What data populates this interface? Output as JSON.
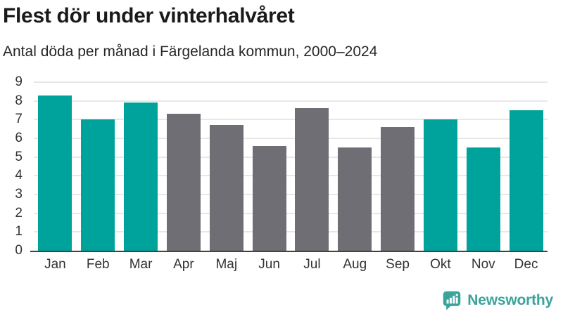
{
  "header": {
    "title": "Flest dör under vinterhalvåret",
    "subtitle": "Antal döda per månad i Färgelanda kommun, 2000–2024"
  },
  "chart_data": {
    "type": "bar",
    "title": "Flest dör under vinterhalvåret",
    "subtitle": "Antal döda per månad i Färgelanda kommun, 2000–2024",
    "categories": [
      "Jan",
      "Feb",
      "Mar",
      "Apr",
      "Maj",
      "Jun",
      "Jul",
      "Aug",
      "Sep",
      "Okt",
      "Nov",
      "Dec"
    ],
    "values": [
      8.3,
      7.0,
      7.9,
      7.3,
      6.7,
      5.6,
      7.6,
      5.5,
      6.6,
      7.0,
      5.5,
      7.5
    ],
    "bar_roles": [
      "highlight",
      "highlight",
      "highlight",
      "muted",
      "muted",
      "muted",
      "muted",
      "muted",
      "muted",
      "highlight",
      "highlight",
      "highlight"
    ],
    "highlight_meaning": "winter half-year months",
    "xlabel": "",
    "ylabel": "",
    "ylim": [
      0,
      9
    ],
    "yticks": [
      0,
      1,
      2,
      3,
      4,
      5,
      6,
      7,
      8,
      9
    ],
    "grid": "horizontal",
    "legend": "none",
    "colors": {
      "highlight": "#00a39b",
      "muted": "#6e6e74",
      "gridline": "#e7e7e7",
      "baseline": "#434343",
      "axis_text": "#333333"
    }
  },
  "footer": {
    "brand": "Newsworthy",
    "brand_color": "#3aa39a",
    "logo_icon": "bar-chart-speech-bubble"
  }
}
